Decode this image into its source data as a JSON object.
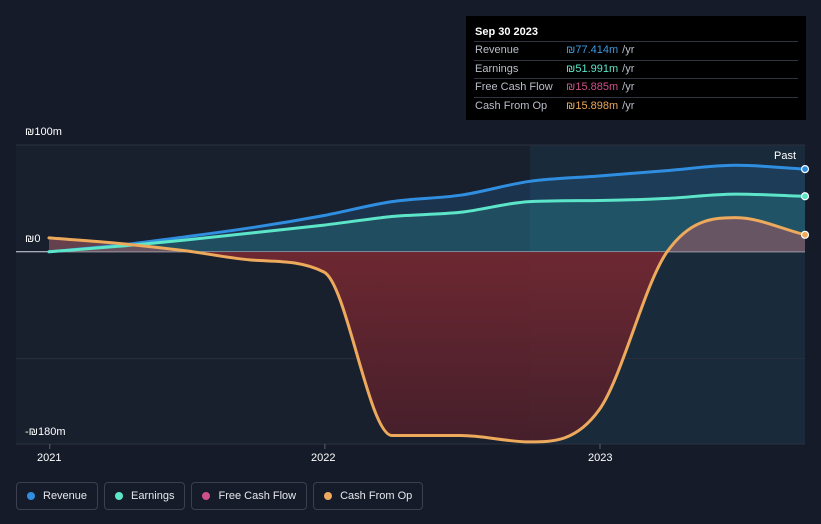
{
  "tooltip": {
    "date": "Sep 30 2023",
    "rows": [
      {
        "label": "Revenue",
        "value": "₪77.414m",
        "unit": "/yr",
        "color": "#3b9ae1"
      },
      {
        "label": "Earnings",
        "value": "₪51.991m",
        "unit": "/yr",
        "color": "#5ce5c8"
      },
      {
        "label": "Free Cash Flow",
        "value": "₪15.885m",
        "unit": "/yr",
        "color": "#d0508a"
      },
      {
        "label": "Cash From Op",
        "value": "₪15.898m",
        "unit": "/yr",
        "color": "#eda95c"
      }
    ]
  },
  "past_label": "Past",
  "legend": [
    {
      "label": "Revenue",
      "color": "#2f8ee0"
    },
    {
      "label": "Earnings",
      "color": "#5ce5c8"
    },
    {
      "label": "Free Cash Flow",
      "color": "#d0508a"
    },
    {
      "label": "Cash From Op",
      "color": "#eda95c"
    }
  ],
  "chart_data": {
    "type": "line",
    "currency": "₪",
    "unit": "m",
    "ylim": [
      -180,
      100
    ],
    "y_ticks": [
      {
        "value": 100,
        "label": "₪100m"
      },
      {
        "value": 0,
        "label": "₪0"
      },
      {
        "value": -180,
        "label": "-₪180m"
      }
    ],
    "x_range": [
      "2020-12-31",
      "2023-09-30"
    ],
    "x_ticks": [
      {
        "date": "2021-01-01",
        "label": "2021"
      },
      {
        "date": "2022-01-01",
        "label": "2022"
      },
      {
        "date": "2023-01-01",
        "label": "2023"
      }
    ],
    "past_start": "2022-09-30",
    "series": [
      {
        "name": "Revenue",
        "color": "#2f8ee0",
        "points": [
          [
            "2020-12-31",
            0
          ],
          [
            "2021-03-31",
            6
          ],
          [
            "2021-06-30",
            14
          ],
          [
            "2021-09-30",
            23
          ],
          [
            "2021-12-31",
            34
          ],
          [
            "2022-03-31",
            47
          ],
          [
            "2022-06-30",
            53
          ],
          [
            "2022-09-30",
            66
          ],
          [
            "2022-12-31",
            71
          ],
          [
            "2023-03-31",
            76
          ],
          [
            "2023-06-30",
            81
          ],
          [
            "2023-09-30",
            77.414
          ]
        ]
      },
      {
        "name": "Earnings",
        "color": "#5ce5c8",
        "points": [
          [
            "2020-12-31",
            0
          ],
          [
            "2021-03-31",
            5
          ],
          [
            "2021-06-30",
            11
          ],
          [
            "2021-09-30",
            18
          ],
          [
            "2021-12-31",
            25
          ],
          [
            "2022-03-31",
            33
          ],
          [
            "2022-06-30",
            37
          ],
          [
            "2022-09-30",
            47
          ],
          [
            "2022-12-31",
            48
          ],
          [
            "2023-03-31",
            50
          ],
          [
            "2023-06-30",
            54
          ],
          [
            "2023-09-30",
            51.991
          ]
        ]
      },
      {
        "name": "Free Cash Flow",
        "color": "#d0508a",
        "points": [
          [
            "2020-12-31",
            13
          ],
          [
            "2021-03-31",
            8
          ],
          [
            "2021-06-30",
            1
          ],
          [
            "2021-09-30",
            -8
          ],
          [
            "2021-12-31",
            -19
          ],
          [
            "2022-03-31",
            -172
          ],
          [
            "2022-06-30",
            -172
          ],
          [
            "2022-09-30",
            -178
          ],
          [
            "2022-12-31",
            -148
          ],
          [
            "2023-03-31",
            0
          ],
          [
            "2023-06-30",
            32
          ],
          [
            "2023-09-30",
            15.885
          ]
        ]
      },
      {
        "name": "Cash From Op",
        "color": "#eda95c",
        "points": [
          [
            "2020-12-31",
            13
          ],
          [
            "2021-03-31",
            8
          ],
          [
            "2021-06-30",
            1
          ],
          [
            "2021-09-30",
            -8
          ],
          [
            "2021-12-31",
            -19
          ],
          [
            "2022-03-31",
            -172
          ],
          [
            "2022-06-30",
            -172
          ],
          [
            "2022-09-30",
            -178
          ],
          [
            "2022-12-31",
            -148
          ],
          [
            "2023-03-31",
            0
          ],
          [
            "2023-06-30",
            32
          ],
          [
            "2023-09-30",
            15.898
          ]
        ]
      }
    ]
  }
}
